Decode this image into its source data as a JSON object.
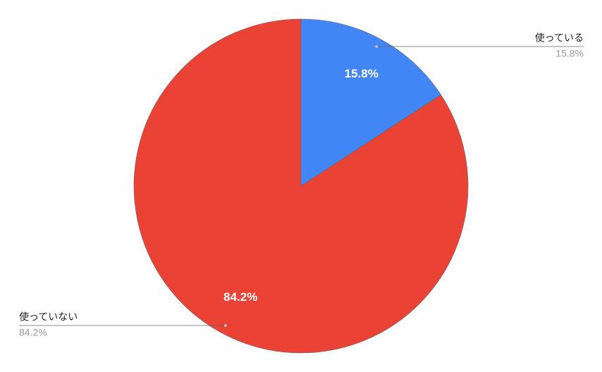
{
  "chart_data": {
    "type": "pie",
    "categories": [
      "使っている",
      "使っていない"
    ],
    "values": [
      15.8,
      84.2
    ],
    "value_labels": [
      "15.8%",
      "84.2%"
    ],
    "colors": [
      "#4285f4",
      "#ea4335"
    ]
  }
}
